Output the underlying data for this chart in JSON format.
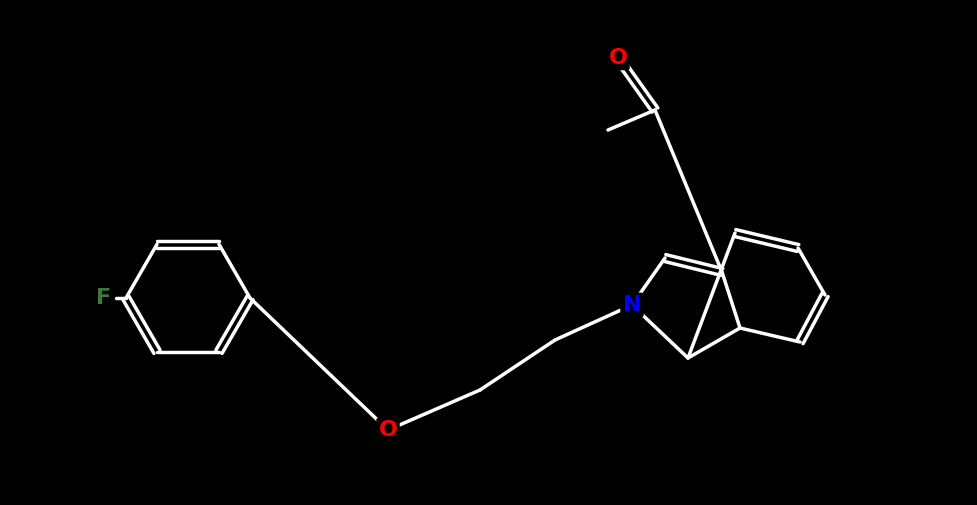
{
  "background_color": "#000000",
  "bond_color": "#ffffff",
  "bond_width": 2.5,
  "atom_colors": {
    "F": "#3a7a3a",
    "O": "#ff0000",
    "N": "#0000ff",
    "C": "#ffffff"
  },
  "font_size": 16,
  "fig_width": 9.78,
  "fig_height": 5.05
}
